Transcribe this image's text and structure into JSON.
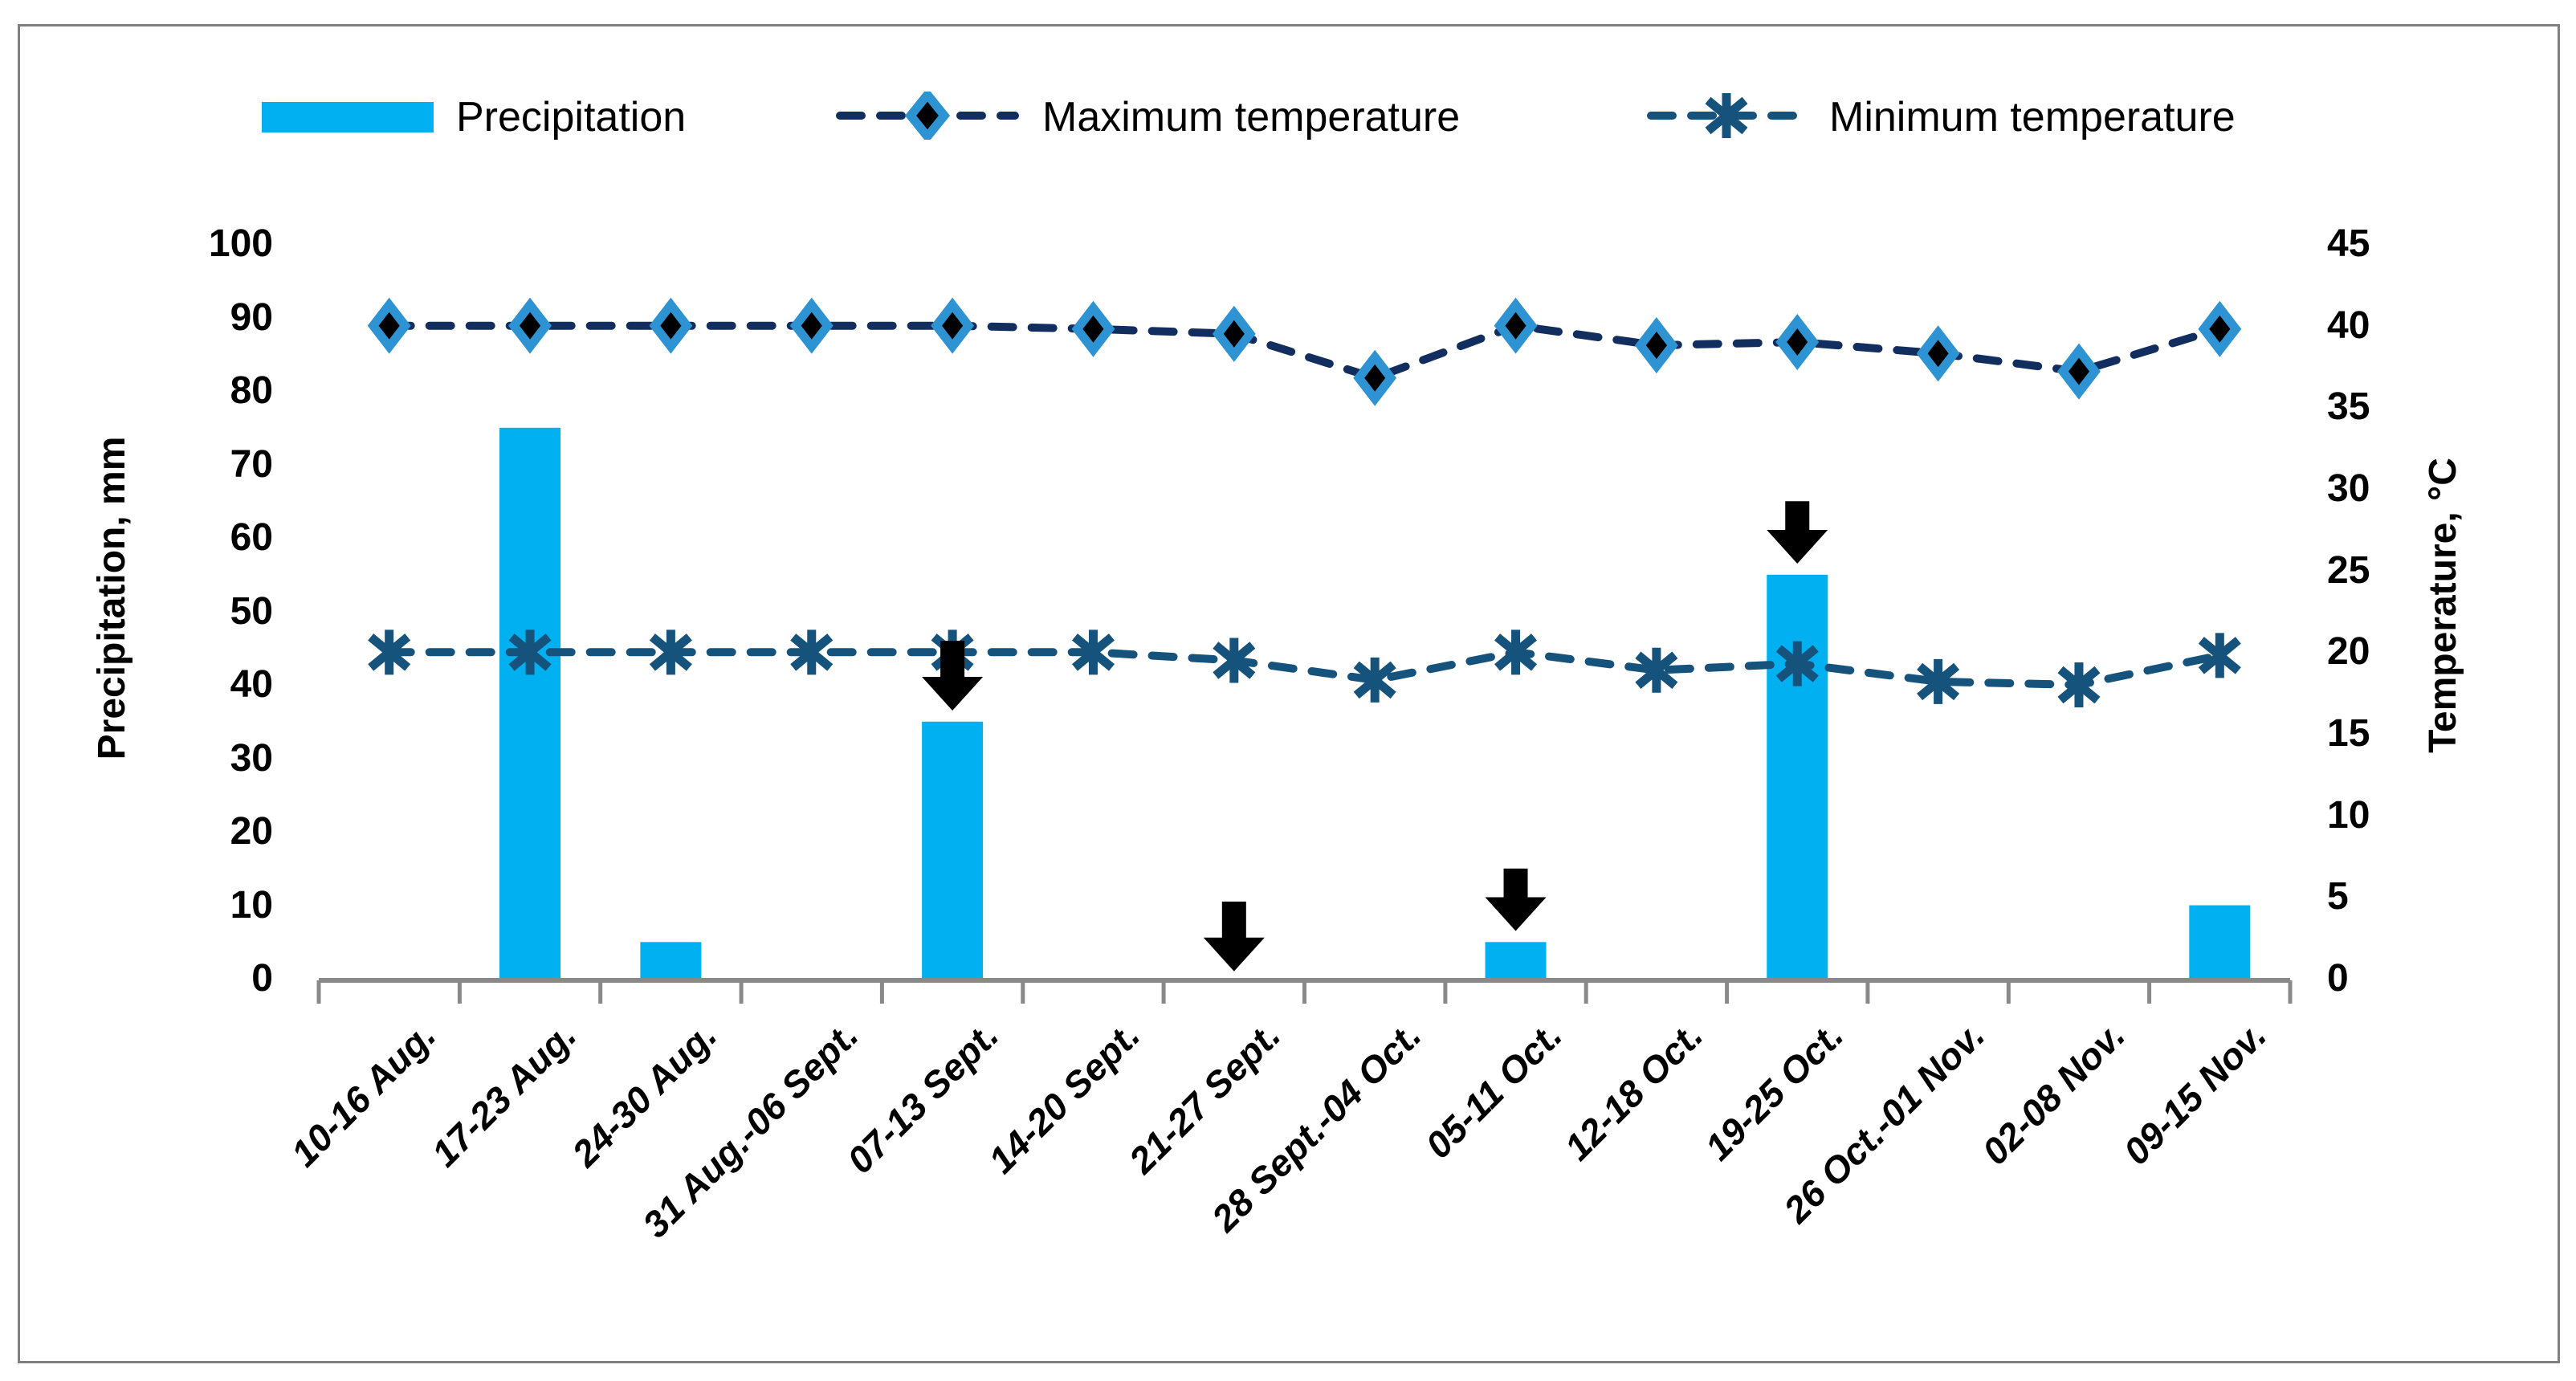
{
  "legend": {
    "items": [
      {
        "label": "Precipitation",
        "marker": "bar-swatch",
        "color": "#00B0F0"
      },
      {
        "label": "Maximum temperature",
        "marker": "dashed-line-diamond",
        "color": "#122E5E",
        "marker_outline": "#2E93D3",
        "marker_fill": "#000000"
      },
      {
        "label": "Minimum temperature",
        "marker": "dashed-line-asterisk",
        "color": "#15527C"
      }
    ]
  },
  "chart_data": {
    "type": "combo-bar-line",
    "legend_position": "top",
    "grid": false,
    "categories": [
      "10-16 Aug.",
      "17-23 Aug.",
      "24-30 Aug.",
      "31 Aug.-06 Sept.",
      "07-13 Sept.",
      "14-20 Sept.",
      "21-27 Sept.",
      "28 Sept.-04 Oct.",
      "05-11 Oct.",
      "12-18 Oct.",
      "19-25 Oct.",
      "26 Oct.-01 Nov.",
      "02-08 Nov.",
      "09-15 Nov."
    ],
    "series": [
      {
        "name": "Precipitation",
        "type": "bar",
        "axis": "left",
        "unit": "mm",
        "color": "#00B0F0",
        "values": [
          0,
          75,
          5,
          0,
          35,
          0,
          0,
          0,
          5,
          0,
          55,
          0,
          0,
          10
        ]
      },
      {
        "name": "Maximum temperature",
        "type": "line",
        "dash": true,
        "marker": "diamond",
        "axis": "right",
        "unit": "°C",
        "color": "#122E5E",
        "marker_outline": "#2E93D3",
        "marker_fill": "#000000",
        "values": [
          40,
          40,
          40,
          40,
          40,
          39.8,
          39.5,
          36.8,
          40,
          38.8,
          39,
          38.3,
          37.2,
          39.8
        ]
      },
      {
        "name": "Minimum temperature",
        "type": "line",
        "dash": true,
        "marker": "asterisk",
        "axis": "right",
        "unit": "°C",
        "color": "#15527C",
        "values": [
          20,
          20,
          20,
          20,
          20,
          20,
          19.5,
          18.3,
          20,
          18.9,
          19.3,
          18.2,
          18,
          19.8
        ]
      }
    ],
    "left_axis": {
      "title": "Precipitation, mm",
      "min": 0,
      "max": 100,
      "step": 10
    },
    "right_axis": {
      "title": "Temperature, °C",
      "min": 0,
      "max": 45,
      "step": 5
    },
    "annotations": {
      "arrow_color": "#000000",
      "arrows": [
        {
          "category": "07-13 Sept.",
          "index": 4,
          "top_mm": 46,
          "tip_mm": 36.5
        },
        {
          "category": "21-27 Sept.",
          "index": 6,
          "top_mm": 10.5,
          "tip_mm": 1
        },
        {
          "category": "05-11 Oct.",
          "index": 8,
          "top_mm": 15,
          "tip_mm": 6.5
        },
        {
          "category": "19-25 Oct.",
          "index": 10,
          "top_mm": 65,
          "tip_mm": 56.5
        }
      ]
    }
  },
  "colors": {
    "background": "#FFFFFF",
    "axis": "#898989",
    "border": "#808080",
    "text": "#000000"
  }
}
